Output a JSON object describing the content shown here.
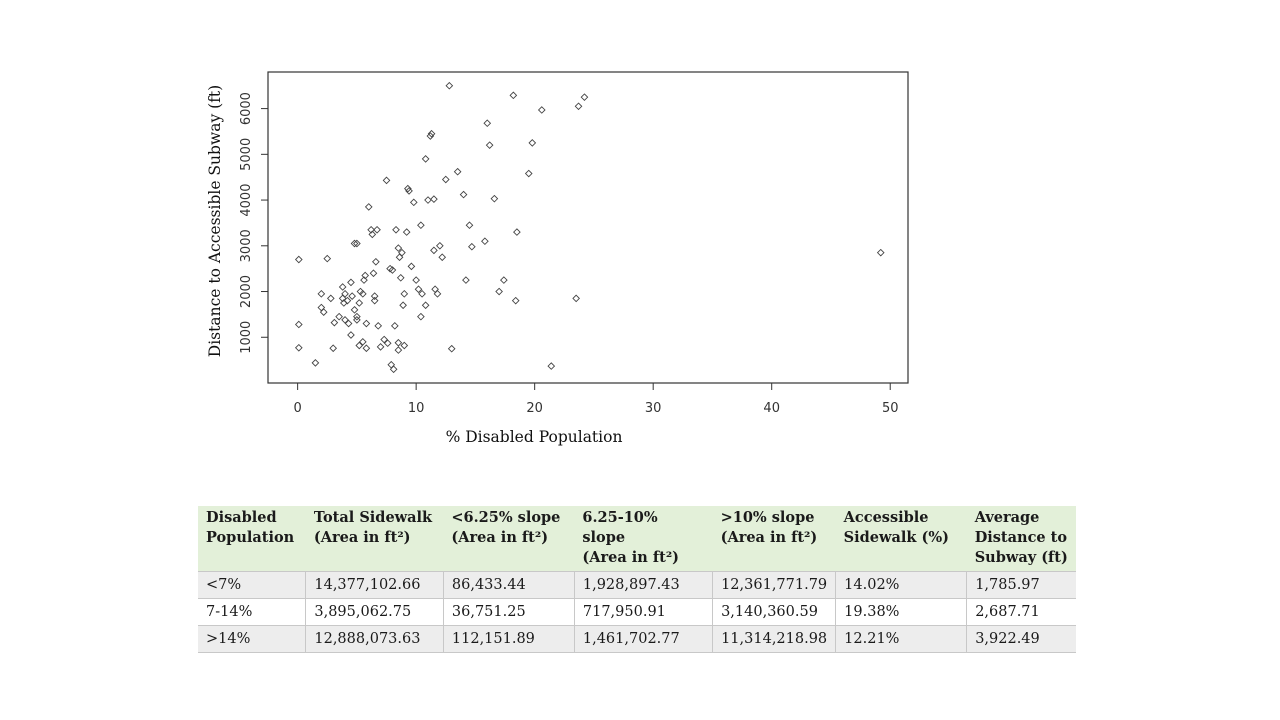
{
  "chart_data": {
    "type": "scatter",
    "title": "",
    "xlabel": "% Disabled Population",
    "ylabel": "Distance to Accessible Subway (ft)",
    "xlim": [
      -2.5,
      51.5
    ],
    "ylim": [
      0,
      6800
    ],
    "xticks": [
      0,
      10,
      20,
      30,
      40,
      50
    ],
    "yticks": [
      1000,
      2000,
      3000,
      4000,
      5000,
      6000
    ],
    "grid": false,
    "legend": "none",
    "marker": "open-diamond",
    "points": [
      [
        0.1,
        2700
      ],
      [
        0.1,
        1280
      ],
      [
        0.1,
        770
      ],
      [
        1.5,
        440
      ],
      [
        2.0,
        1950
      ],
      [
        2.0,
        1650
      ],
      [
        2.2,
        1550
      ],
      [
        2.5,
        2720
      ],
      [
        2.8,
        1850
      ],
      [
        3.0,
        760
      ],
      [
        3.1,
        1320
      ],
      [
        3.5,
        1450
      ],
      [
        3.8,
        2100
      ],
      [
        3.8,
        1850
      ],
      [
        3.9,
        1750
      ],
      [
        4.0,
        1950
      ],
      [
        4.0,
        1380
      ],
      [
        4.2,
        1800
      ],
      [
        4.3,
        1300
      ],
      [
        4.5,
        2200
      ],
      [
        4.5,
        1050
      ],
      [
        4.6,
        1900
      ],
      [
        4.8,
        1600
      ],
      [
        4.8,
        3050
      ],
      [
        5.0,
        3050
      ],
      [
        5.0,
        1450
      ],
      [
        5.0,
        1380
      ],
      [
        5.2,
        1750
      ],
      [
        5.2,
        820
      ],
      [
        5.3,
        2000
      ],
      [
        5.5,
        1950
      ],
      [
        5.5,
        900
      ],
      [
        5.6,
        2250
      ],
      [
        5.7,
        2350
      ],
      [
        5.8,
        1300
      ],
      [
        5.8,
        760
      ],
      [
        6.0,
        3850
      ],
      [
        6.2,
        3350
      ],
      [
        6.3,
        3250
      ],
      [
        6.4,
        2400
      ],
      [
        6.5,
        1900
      ],
      [
        6.5,
        1800
      ],
      [
        6.6,
        2650
      ],
      [
        6.7,
        3350
      ],
      [
        6.8,
        1250
      ],
      [
        7.0,
        790
      ],
      [
        7.3,
        950
      ],
      [
        7.5,
        4430
      ],
      [
        7.6,
        870
      ],
      [
        7.8,
        2500
      ],
      [
        7.9,
        400
      ],
      [
        8.0,
        2470
      ],
      [
        8.1,
        300
      ],
      [
        8.2,
        1250
      ],
      [
        8.3,
        3350
      ],
      [
        8.5,
        2950
      ],
      [
        8.5,
        880
      ],
      [
        8.5,
        720
      ],
      [
        8.6,
        2750
      ],
      [
        8.7,
        2300
      ],
      [
        8.8,
        2850
      ],
      [
        8.9,
        1700
      ],
      [
        9.0,
        1950
      ],
      [
        9.0,
        820
      ],
      [
        9.2,
        3300
      ],
      [
        9.3,
        4250
      ],
      [
        9.4,
        4200
      ],
      [
        9.6,
        2550
      ],
      [
        9.8,
        3950
      ],
      [
        10.0,
        2250
      ],
      [
        10.2,
        2050
      ],
      [
        10.4,
        3450
      ],
      [
        10.4,
        1450
      ],
      [
        10.5,
        1950
      ],
      [
        10.8,
        4900
      ],
      [
        10.8,
        1700
      ],
      [
        11.0,
        4000
      ],
      [
        11.2,
        5400
      ],
      [
        11.3,
        5450
      ],
      [
        11.5,
        4020
      ],
      [
        11.5,
        2900
      ],
      [
        11.6,
        2050
      ],
      [
        11.8,
        1950
      ],
      [
        12.0,
        3000
      ],
      [
        12.2,
        2750
      ],
      [
        12.5,
        4450
      ],
      [
        12.8,
        6500
      ],
      [
        13.0,
        750
      ],
      [
        13.5,
        4620
      ],
      [
        14.0,
        4120
      ],
      [
        14.2,
        2250
      ],
      [
        14.5,
        3450
      ],
      [
        14.7,
        2980
      ],
      [
        15.8,
        3100
      ],
      [
        16.0,
        5680
      ],
      [
        16.2,
        5200
      ],
      [
        16.6,
        4030
      ],
      [
        17.0,
        2000
      ],
      [
        17.4,
        2250
      ],
      [
        18.2,
        6290
      ],
      [
        18.4,
        1800
      ],
      [
        18.5,
        3300
      ],
      [
        19.5,
        4580
      ],
      [
        19.8,
        5250
      ],
      [
        20.6,
        5970
      ],
      [
        21.4,
        370
      ],
      [
        23.5,
        1850
      ],
      [
        23.7,
        6050
      ],
      [
        24.2,
        6250
      ],
      [
        49.2,
        2850
      ]
    ]
  },
  "table": {
    "headers": [
      [
        "Disabled",
        "Population"
      ],
      [
        "Total Sidewalk",
        "(Area in ft²)"
      ],
      [
        "<6.25% slope",
        "(Area in ft²)"
      ],
      [
        "6.25-10% slope",
        "(Area in ft²)"
      ],
      [
        ">10% slope",
        "(Area in ft²)"
      ],
      [
        "Accessible",
        "Sidewalk (%)"
      ],
      [
        "Average",
        "Distance to",
        "Subway (ft)"
      ]
    ],
    "rows": [
      [
        "<7%",
        "14,377,102.66",
        "86,433.44",
        "1,928,897.43",
        "12,361,771.79",
        "14.02%",
        "1,785.97"
      ],
      [
        "7-14%",
        "3,895,062.75",
        "36,751.25",
        "717,950.91",
        "3,140,360.59",
        "19.38%",
        "2,687.71"
      ],
      [
        ">14%",
        "12,888,073.63",
        "112,151.89",
        "1,461,702.77",
        "11,314,218.98",
        "12.21%",
        "3,922.49"
      ]
    ]
  }
}
